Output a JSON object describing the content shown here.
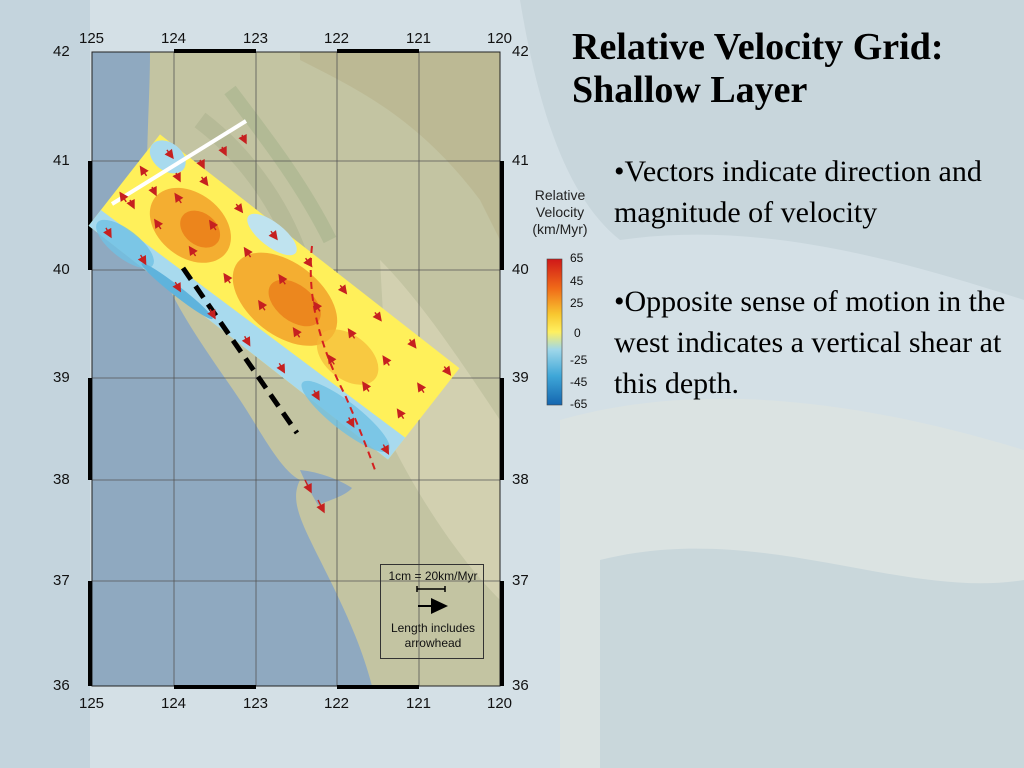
{
  "slide": {
    "title": "Relative Velocity Grid: Shallow Layer",
    "bullets": [
      "•Vectors indicate direction and magnitude of velocity",
      "•Opposite sense of motion in the west indicates a vertical shear at this depth."
    ]
  },
  "map": {
    "lon_ticks_top": [
      "125",
      "124",
      "123",
      "122",
      "121",
      "120"
    ],
    "lon_ticks_bottom": [
      "125",
      "124",
      "123",
      "122",
      "121",
      "120"
    ],
    "lat_ticks_left": [
      "42",
      "41",
      "40",
      "39",
      "38",
      "37",
      "36"
    ],
    "lat_ticks_right": [
      "42",
      "41",
      "40",
      "39",
      "38",
      "37",
      "36"
    ],
    "colors": {
      "ocean": "#8fa9c0",
      "land": "#c6c7a5",
      "hot": "#ea7a18",
      "cold": "#5fb3dc",
      "arrow": "#cc2222"
    }
  },
  "colorbar": {
    "title": "Relative Velocity (km/Myr)",
    "labels": [
      "65",
      "45",
      "25",
      "0",
      "-25",
      "-45",
      "-65"
    ]
  },
  "scale": {
    "top_label": "1cm = 20km/Myr",
    "bottom_label": "Length includes arrowhead"
  }
}
